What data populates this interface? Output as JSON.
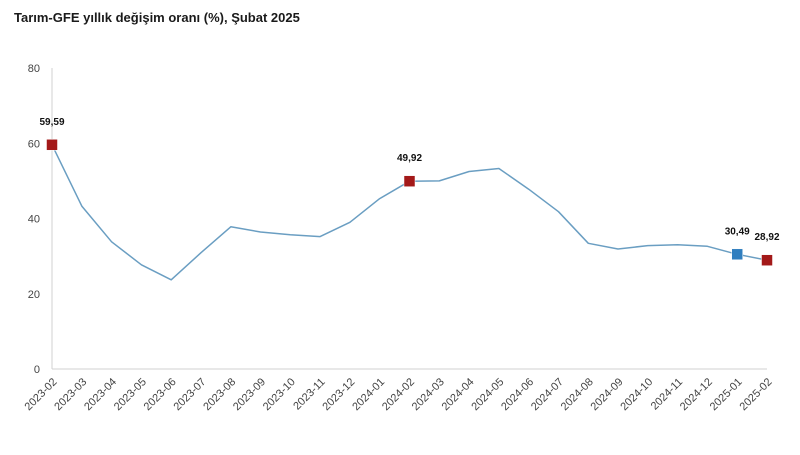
{
  "chart_data": {
    "type": "line",
    "title": "Tarım-GFE yıllık değişim oranı (%), Şubat 2025",
    "xlabel": "",
    "ylabel": "",
    "ylim": [
      0,
      80
    ],
    "yticks": [
      "0",
      "20",
      "40",
      "60",
      "80"
    ],
    "grid": false,
    "categories": [
      "2023-02",
      "2023-03",
      "2023-04",
      "2023-05",
      "2023-06",
      "2023-07",
      "2023-08",
      "2023-09",
      "2023-10",
      "2023-11",
      "2023-12",
      "2024-01",
      "2024-02",
      "2024-03",
      "2024-04",
      "2024-05",
      "2024-06",
      "2024-07",
      "2024-08",
      "2024-09",
      "2024-10",
      "2024-11",
      "2024-12",
      "2025-01",
      "2025-02"
    ],
    "series": [
      {
        "values": [
          59.59,
          43.3,
          33.8,
          27.7,
          23.7,
          30.9,
          37.8,
          36.4,
          35.7,
          35.2,
          39.0,
          45.3,
          49.92,
          50.0,
          52.5,
          53.3,
          47.8,
          41.8,
          33.4,
          31.9,
          32.8,
          33.0,
          32.6,
          30.49,
          28.92
        ],
        "color": "#6a9ec2"
      }
    ],
    "highlights": [
      {
        "index": 0,
        "label": "59,59",
        "color": "#a31919"
      },
      {
        "index": 12,
        "label": "49,92",
        "color": "#a31919"
      },
      {
        "index": 23,
        "label": "30,49",
        "color": "#2f7ebf"
      },
      {
        "index": 24,
        "label": "28,92",
        "color": "#a31919"
      }
    ]
  }
}
